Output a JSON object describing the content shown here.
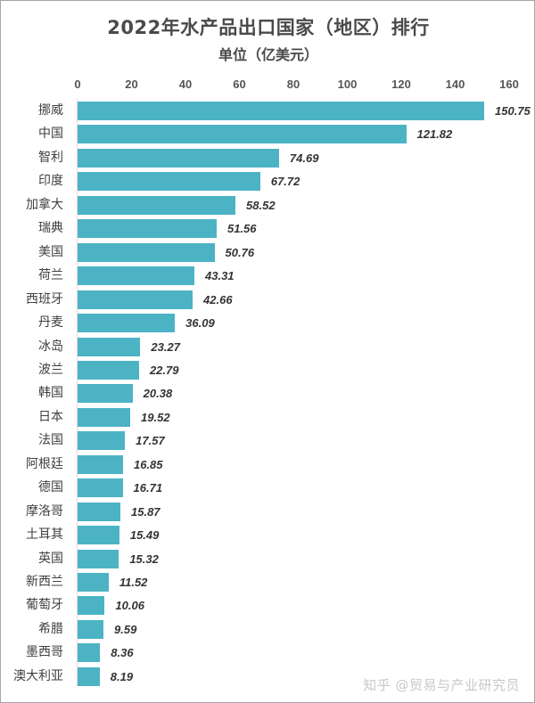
{
  "chart_data": {
    "type": "bar",
    "orientation": "horizontal",
    "title": "2022年水产品出口国家（地区）排行",
    "subtitle": "单位（亿美元）",
    "xlabel": "",
    "ylabel": "",
    "xlim": [
      0,
      160
    ],
    "x_ticks": [
      "0",
      "20",
      "40",
      "60",
      "80",
      "100",
      "120",
      "140",
      "160"
    ],
    "x_tick_values": [
      0,
      20,
      40,
      60,
      80,
      100,
      120,
      140,
      160
    ],
    "grid": false,
    "legend": null,
    "data_labels": true,
    "bar_color": "#4bb3c4",
    "categories": [
      "挪威",
      "中国",
      "智利",
      "印度",
      "加拿大",
      "瑞典",
      "美国",
      "荷兰",
      "西班牙",
      "丹麦",
      "冰岛",
      "波兰",
      "韩国",
      "日本",
      "法国",
      "阿根廷",
      "德国",
      "摩洛哥",
      "土耳其",
      "英国",
      "新西兰",
      "葡萄牙",
      "希腊",
      "墨西哥",
      "澳大利亚"
    ],
    "values": [
      150.75,
      121.82,
      74.69,
      67.72,
      58.52,
      51.56,
      50.76,
      43.31,
      42.66,
      36.09,
      23.27,
      22.79,
      20.38,
      19.52,
      17.57,
      16.85,
      16.71,
      15.87,
      15.49,
      15.32,
      11.52,
      10.06,
      9.59,
      8.36,
      8.19
    ],
    "value_labels": [
      "150.75",
      "121.82",
      "74.69",
      "67.72",
      "58.52",
      "51.56",
      "50.76",
      "43.31",
      "42.66",
      "36.09",
      "23.27",
      "22.79",
      "20.38",
      "19.52",
      "17.57",
      "16.85",
      "16.71",
      "15.87",
      "15.49",
      "15.32",
      "11.52",
      "10.06",
      "9.59",
      "8.36",
      "8.19"
    ]
  },
  "watermark": "知乎 @贸易与产业研究员"
}
